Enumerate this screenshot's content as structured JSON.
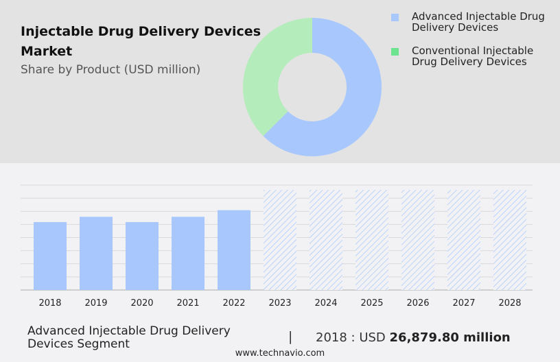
{
  "header": {
    "title": "Injectable Drug Delivery Devices Market",
    "subtitle": "Share by Product (USD million)"
  },
  "colors": {
    "advanced": "#a8c8fd",
    "conventional": "#b5ecbb",
    "conventional_legend": "#6ee38f",
    "hatch": "#a8c8fd"
  },
  "chart_data": [
    {
      "type": "pie",
      "donut": true,
      "slices": [
        {
          "name": "Advanced Injectable Drug Delivery Devices",
          "share": 62.5
        },
        {
          "name": "Conventional Injectable Drug Delivery Devices",
          "share": 37.5
        }
      ],
      "legend_position": "right"
    },
    {
      "type": "bar",
      "categories": [
        "2018",
        "2019",
        "2020",
        "2021",
        "2022",
        "2023",
        "2024",
        "2025",
        "2026",
        "2027",
        "2028"
      ],
      "values": [
        26879.8,
        28960,
        26880,
        28960,
        31580,
        null,
        null,
        null,
        null,
        null,
        null
      ],
      "forecast_years_hatched": [
        "2023",
        "2024",
        "2025",
        "2026",
        "2027",
        "2028"
      ],
      "ylim": [
        0,
        41500
      ],
      "grid": true,
      "unit": "USD million"
    }
  ],
  "footer": {
    "segment": "Advanced Injectable Drug Delivery Devices Segment",
    "separator": "|",
    "year_label": "2018 : USD",
    "value": "26,879.80 million",
    "url": "www.technavio.com"
  }
}
